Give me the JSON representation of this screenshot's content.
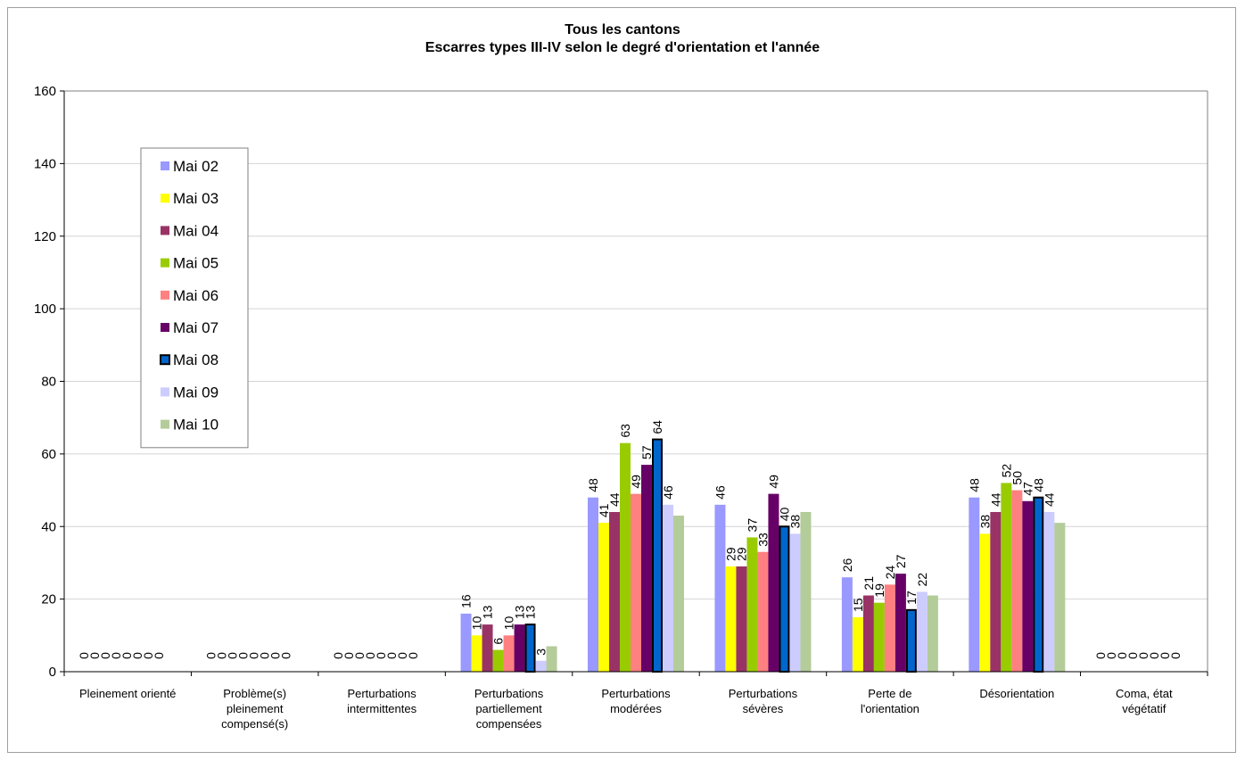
{
  "chart_data": {
    "type": "bar",
    "title": "Tous les cantons",
    "subtitle": "Escarres types III-IV selon le degré d'orientation et l'année",
    "xlabel": "",
    "ylabel": "",
    "ylim": [
      0,
      160
    ],
    "yticks": [
      0,
      20,
      40,
      60,
      80,
      100,
      120,
      140,
      160
    ],
    "grid": true,
    "legend_position": "left",
    "categories": [
      [
        "Pleinement orienté"
      ],
      [
        "Problème(s)",
        "pleinement",
        "compensé(s)"
      ],
      [
        "Perturbations",
        "intermittentes"
      ],
      [
        "Perturbations",
        "partiellement",
        "compensées"
      ],
      [
        "Perturbations",
        "modérées"
      ],
      [
        "Perturbations",
        "sévères"
      ],
      [
        "Perte de",
        "l'orientation"
      ],
      [
        "Désorientation"
      ],
      [
        "Coma, état",
        "végétatif"
      ]
    ],
    "series": [
      {
        "name": "Mai 02",
        "color": "#9999ff",
        "values": [
          0,
          0,
          0,
          16,
          48,
          46,
          26,
          48,
          0
        ]
      },
      {
        "name": "Mai 03",
        "color": "#ffff00",
        "values": [
          0,
          0,
          0,
          10,
          41,
          29,
          15,
          38,
          0
        ]
      },
      {
        "name": "Mai 04",
        "color": "#993366",
        "values": [
          0,
          0,
          0,
          13,
          44,
          29,
          21,
          44,
          0
        ]
      },
      {
        "name": "Mai 05",
        "color": "#99cc00",
        "values": [
          0,
          0,
          0,
          6,
          63,
          37,
          19,
          52,
          0
        ]
      },
      {
        "name": "Mai 06",
        "color": "#ff8080",
        "values": [
          0,
          0,
          0,
          10,
          49,
          33,
          24,
          50,
          0
        ]
      },
      {
        "name": "Mai 07",
        "color": "#660066",
        "values": [
          0,
          0,
          0,
          13,
          57,
          49,
          27,
          47,
          0
        ]
      },
      {
        "name": "Mai 08",
        "color": "#0066cc",
        "outlined": true,
        "values": [
          0,
          0,
          0,
          13,
          64,
          40,
          17,
          48,
          0
        ]
      },
      {
        "name": "Mai 09",
        "color": "#ccccff",
        "values": [
          0,
          0,
          0,
          3,
          46,
          38,
          22,
          44,
          0
        ]
      },
      {
        "name": "Mai 10",
        "color": "#b3cc99",
        "values": [
          0,
          0,
          0,
          7,
          43,
          44,
          21,
          41,
          0
        ]
      }
    ],
    "data_labels": [
      [
        "0",
        "0",
        "0",
        "16",
        "48",
        "46",
        "26",
        "48",
        "0"
      ],
      [
        "0",
        "0",
        "0",
        "10",
        "41",
        "29",
        "15",
        "38",
        "0"
      ],
      [
        "0",
        "0",
        "0",
        "13",
        "44",
        "29",
        "21",
        "44",
        "0"
      ],
      [
        "0",
        "0",
        "0",
        "6",
        "63",
        "37",
        "19",
        "52",
        "0"
      ],
      [
        "0",
        "0",
        "0",
        "10",
        "49",
        "33",
        "24",
        "50",
        "0"
      ],
      [
        "0",
        "0",
        "0",
        "13",
        "57",
        "49",
        "27",
        "47",
        "0"
      ],
      [
        "0",
        "0",
        "0",
        "13",
        "64",
        "40",
        "17",
        "48",
        "0"
      ],
      [
        "0",
        "0",
        "0",
        "3",
        "46",
        "38",
        "22",
        "44",
        "0"
      ],
      [
        "",
        "",
        "",
        "",
        "",
        "",
        "",
        "",
        ""
      ]
    ]
  }
}
